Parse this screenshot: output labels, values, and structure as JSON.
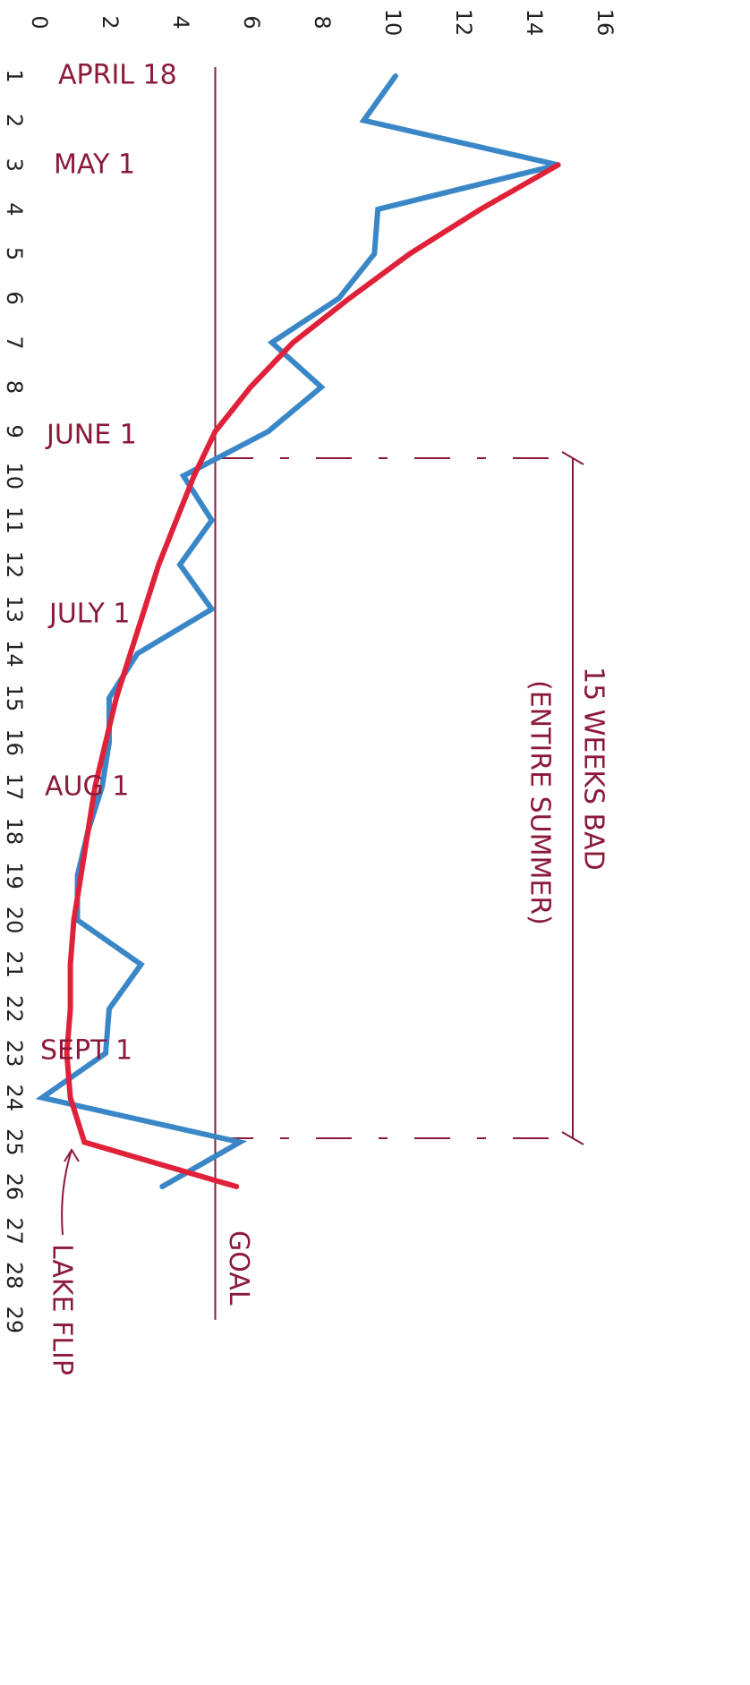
{
  "chart_data": {
    "type": "line",
    "categories": [
      "1",
      "2",
      "3",
      "4",
      "5",
      "6",
      "7",
      "8",
      "9",
      "10",
      "11",
      "12",
      "13",
      "14",
      "15",
      "16",
      "17",
      "18",
      "19",
      "20",
      "21",
      "22",
      "23",
      "24",
      "25",
      "26",
      "27",
      "28",
      "29"
    ],
    "series": [
      {
        "color": "#3a87c8",
        "values": [
          10.1,
          9.2,
          14.7,
          9.6,
          9.5,
          8.5,
          6.6,
          8.0,
          6.5,
          4.1,
          4.9,
          4.0,
          4.9,
          2.8,
          2.0,
          2.0,
          1.8,
          1.4,
          1.1,
          1.1,
          2.9,
          2.0,
          1.9,
          0.1,
          5.7,
          3.5,
          null,
          null,
          null
        ]
      },
      {
        "color": "#e0213a",
        "values": [
          null,
          null,
          14.7,
          12.5,
          10.5,
          8.8,
          7.2,
          6.0,
          5.0,
          4.4,
          3.9,
          3.4,
          3.0,
          2.6,
          2.2,
          1.9,
          1.6,
          1.4,
          1.2,
          1.0,
          0.9,
          0.9,
          0.8,
          0.9,
          1.3,
          5.6,
          null,
          null,
          null
        ]
      }
    ],
    "xlim": [
      0,
      16
    ],
    "xticks": [
      0,
      2,
      4,
      6,
      8,
      10,
      12,
      14,
      16
    ],
    "goal": {
      "value": 5,
      "label": "GOAL",
      "color": "#8b1a3a"
    },
    "annotations": [
      "APRIL 18",
      "MAY 1",
      "JUNE 1",
      "JULY 1",
      "AUG 1",
      "SEPT 1"
    ],
    "bracket_label": [
      "15 WEEKS BAD",
      "(ENTIRE SUMMER)"
    ],
    "arrow_label": "LAKE FLIP"
  }
}
